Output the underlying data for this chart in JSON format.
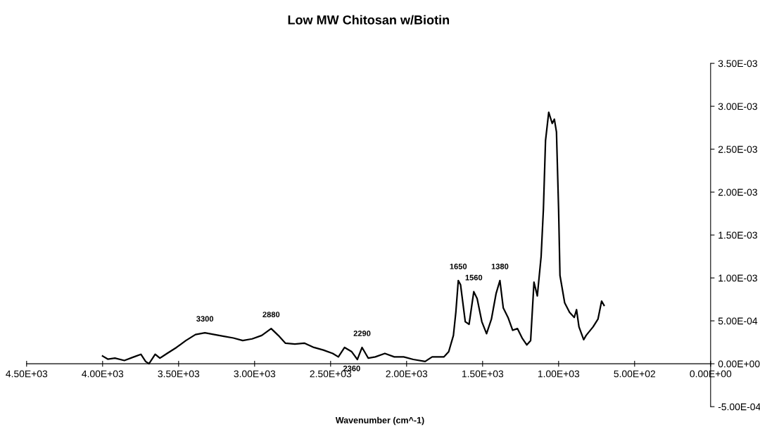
{
  "chart_data": {
    "type": "line",
    "title": "Low MW Chitosan w/Biotin",
    "xlabel": "Wavenumber (cm^-1)",
    "x": [
      4000,
      3966,
      3919,
      3857,
      3794,
      3748,
      3717,
      3695,
      3654,
      3623,
      3576,
      3514,
      3452,
      3389,
      3327,
      3265,
      3202,
      3140,
      3078,
      3016,
      2953,
      2891,
      2844,
      2798,
      2735,
      2673,
      2610,
      2548,
      2486,
      2449,
      2408,
      2361,
      2324,
      2293,
      2252,
      2206,
      2143,
      2081,
      2019,
      1956,
      1878,
      1832,
      1754,
      1723,
      1692,
      1676,
      1660,
      1645,
      1614,
      1589,
      1558,
      1536,
      1505,
      1474,
      1442,
      1411,
      1386,
      1364,
      1333,
      1302,
      1271,
      1240,
      1209,
      1184,
      1162,
      1140,
      1115,
      1100,
      1086,
      1065,
      1042,
      1028,
      1014,
      1000,
      991,
      960,
      928,
      897,
      882,
      866,
      835,
      819,
      773,
      741,
      717,
      701
    ],
    "series": [
      {
        "color": "#000000",
        "values": [
          9e-05,
          5.4e-05,
          6.5e-05,
          3.8e-05,
          8e-05,
          0.00011,
          2.7e-05,
          0,
          0.00011,
          6.5e-05,
          0.00012,
          0.00019,
          0.00027,
          0.00034,
          0.00036,
          0.00034,
          0.00032,
          0.0003,
          0.00027,
          0.00029,
          0.00033,
          0.00041,
          0.00033,
          0.00024,
          0.00023,
          0.00024,
          0.00019,
          0.00016,
          0.00012,
          8e-05,
          0.00019,
          0.00014,
          5e-05,
          0.00019,
          6.5e-05,
          8e-05,
          0.00012,
          8e-05,
          8e-05,
          5e-05,
          2.7e-05,
          8e-05,
          8e-05,
          0.00014,
          0.00033,
          0.0006,
          0.00097,
          0.00092,
          0.00049,
          0.00046,
          0.00084,
          0.00076,
          0.00049,
          0.00035,
          0.00052,
          0.00082,
          0.00097,
          0.00065,
          0.00054,
          0.00039,
          0.00041,
          0.0003,
          0.00022,
          0.00027,
          0.00095,
          0.00079,
          0.00125,
          0.0018,
          0.0026,
          0.00293,
          0.0028,
          0.00285,
          0.0027,
          0.0018,
          0.00103,
          0.00071,
          0.0006,
          0.00054,
          0.00063,
          0.00043,
          0.00028,
          0.00033,
          0.00043,
          0.00052,
          0.00073,
          0.00068
        ]
      }
    ],
    "xlim": [
      4500,
      0
    ],
    "ylim": [
      -0.0005,
      0.0035
    ],
    "xticks": [
      {
        "value": 4500,
        "label": "4.50E+03"
      },
      {
        "value": 4000,
        "label": "4.00E+03"
      },
      {
        "value": 3500,
        "label": "3.50E+03"
      },
      {
        "value": 3000,
        "label": "3.00E+03"
      },
      {
        "value": 2500,
        "label": "2.50E+03"
      },
      {
        "value": 2000,
        "label": "2.00E+03"
      },
      {
        "value": 1500,
        "label": "1.50E+03"
      },
      {
        "value": 1000,
        "label": "1.00E+03"
      },
      {
        "value": 500,
        "label": "5.00E+02"
      },
      {
        "value": 0,
        "label": "0.00E+00"
      }
    ],
    "yticks": [
      {
        "value": -0.0005,
        "label": "-5.00E-04"
      },
      {
        "value": 0,
        "label": "0.00E+00"
      },
      {
        "value": 0.0005,
        "label": "5.00E-04"
      },
      {
        "value": 0.001,
        "label": "1.00E-03"
      },
      {
        "value": 0.0015,
        "label": "1.50E-03"
      },
      {
        "value": 0.002,
        "label": "2.00E-03"
      },
      {
        "value": 0.0025,
        "label": "2.50E-03"
      },
      {
        "value": 0.003,
        "label": "3.00E-03"
      },
      {
        "value": 0.0035,
        "label": "3.50E-03"
      }
    ],
    "annotations": [
      {
        "text": "3300",
        "x": 3327,
        "y": 0.00036
      },
      {
        "text": "2880",
        "x": 2891,
        "y": 0.00041
      },
      {
        "text": "2360",
        "x": 2361,
        "y": 0.00014
      },
      {
        "text": "2290",
        "x": 2293,
        "y": 0.00019
      },
      {
        "text": "1650",
        "x": 1660,
        "y": 0.00097
      },
      {
        "text": "1560",
        "x": 1558,
        "y": 0.00084
      },
      {
        "text": "1380",
        "x": 1386,
        "y": 0.00097
      }
    ],
    "grid": false,
    "legend": false,
    "marker": "none",
    "line_style": "solid"
  }
}
